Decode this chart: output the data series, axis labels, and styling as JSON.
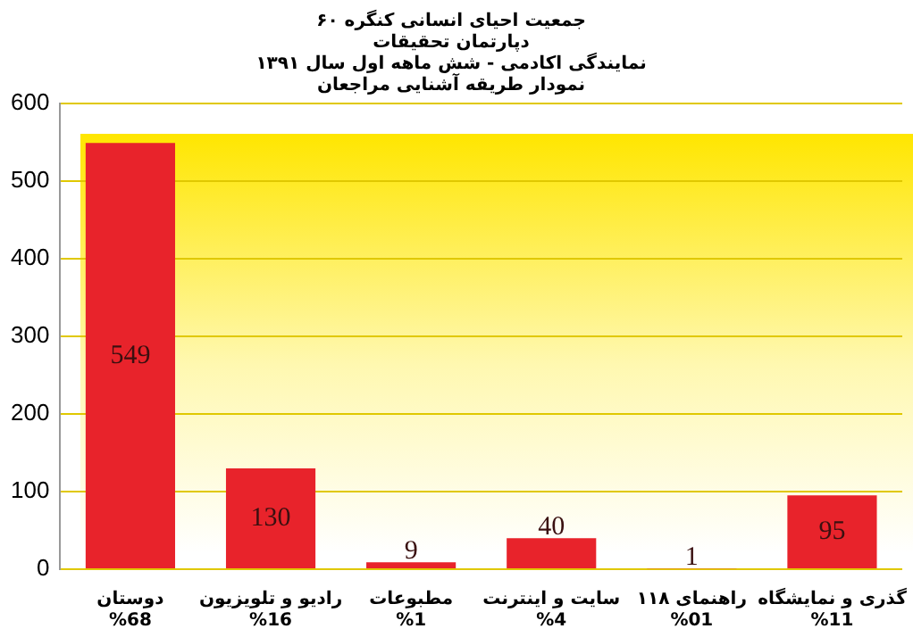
{
  "chart_data": {
    "type": "bar",
    "title": "جمعیت احیای انسانی کنگره ۶۰\nدپارتمان تحقیقات\nنمایندگی اکادمی - شش ماهه اول سال ۱۳۹۱\nنمودار طریقه آشنایی مراجعان",
    "categories": [
      "دوستان\n%68",
      "رادیو و تلویزیون\n%16",
      "مطبوعات\n%1",
      "سایت و اینترنت\n%4",
      "راهنمای ۱۱۸\n%01",
      "گذری و نمایشگاه\n%11"
    ],
    "values": [
      549,
      130,
      9,
      40,
      1,
      95
    ],
    "color": "#e8232b",
    "ylim": [
      0,
      600
    ],
    "yticks": [
      0,
      100,
      200,
      300,
      400,
      500,
      600
    ],
    "grid": "y",
    "data_labels": true
  }
}
